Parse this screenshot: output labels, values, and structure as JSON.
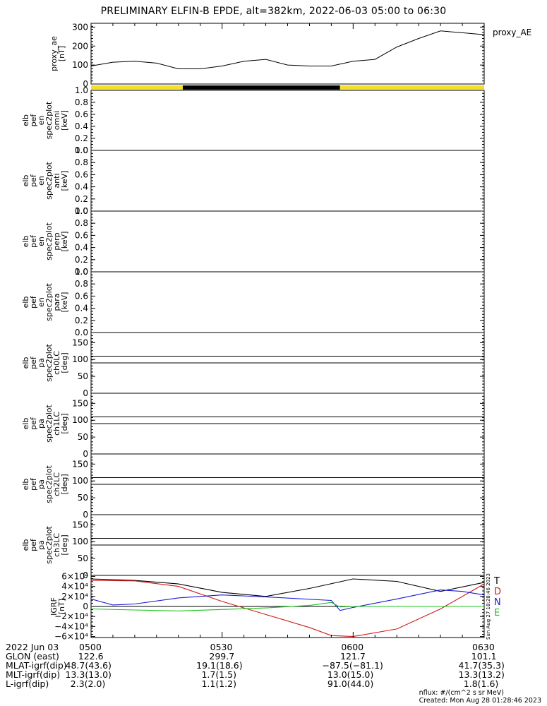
{
  "title": "PRELIMINARY ELFIN-B EPDE, alt=382km, 2022-06-03 05:00 to 06:30",
  "panels": [
    {
      "kind": "ae",
      "ylabel_lines": [
        "proxy_ae",
        "[nT]"
      ],
      "ticks": [
        0,
        100,
        200,
        300
      ],
      "ylim": [
        0,
        320
      ],
      "legend": "proxy_AE"
    },
    {
      "kind": "energy",
      "ylabel_lines": [
        "elb",
        "pef",
        "en",
        "spec2plot",
        "omni",
        "[keV]"
      ],
      "ticks": [
        "0.0",
        "0.2",
        "0.4",
        "0.6",
        "0.8",
        "1.0"
      ],
      "ylim": [
        0,
        1
      ]
    },
    {
      "kind": "energy",
      "ylabel_lines": [
        "elb",
        "pef",
        "en",
        "spec2plot",
        "anti",
        "[keV]"
      ],
      "ticks": [
        "0.0",
        "0.2",
        "0.4",
        "0.6",
        "0.8",
        "1.0"
      ],
      "ylim": [
        0,
        1
      ]
    },
    {
      "kind": "energy",
      "ylabel_lines": [
        "elb",
        "pef",
        "en",
        "spec2plot",
        "perp",
        "[keV]"
      ],
      "ticks": [
        "0.0",
        "0.2",
        "0.4",
        "0.6",
        "0.8",
        "1.0"
      ],
      "ylim": [
        0,
        1
      ]
    },
    {
      "kind": "energy",
      "ylabel_lines": [
        "elb",
        "pef",
        "en",
        "spec2plot",
        "para",
        "[keV]"
      ],
      "ticks": [
        "0.0",
        "0.2",
        "0.4",
        "0.6",
        "0.8",
        "1.0"
      ],
      "ylim": [
        0,
        1
      ]
    },
    {
      "kind": "pa",
      "ylabel_lines": [
        "elb",
        "pef",
        "pa",
        "spec2plot",
        "ch0LC",
        "[deg]"
      ],
      "ticks": [
        0,
        50,
        100,
        150
      ],
      "ylim": [
        0,
        180
      ],
      "hlines": [
        110,
        90
      ]
    },
    {
      "kind": "pa",
      "ylabel_lines": [
        "elb",
        "pef",
        "pa",
        "spec2plot",
        "ch1LC",
        "[deg]"
      ],
      "ticks": [
        0,
        50,
        100,
        150
      ],
      "ylim": [
        0,
        180
      ],
      "hlines": [
        110,
        90
      ]
    },
    {
      "kind": "pa",
      "ylabel_lines": [
        "elb",
        "pef",
        "pa",
        "spec2plot",
        "ch2LC",
        "[deg]"
      ],
      "ticks": [
        0,
        50,
        100,
        150
      ],
      "ylim": [
        0,
        180
      ],
      "hlines": [
        110,
        90
      ]
    },
    {
      "kind": "pa",
      "ylabel_lines": [
        "elb",
        "pef",
        "pa",
        "spec2plot",
        "ch3LC",
        "[deg]"
      ],
      "ticks": [
        0,
        50,
        100,
        150
      ],
      "ylim": [
        0,
        180
      ],
      "hlines": [
        110,
        90
      ]
    },
    {
      "kind": "igrf",
      "ylabel_lines": [
        "IGRF",
        "[nT]"
      ],
      "ticks": [
        -6,
        -4,
        -2,
        0,
        2,
        4,
        6
      ],
      "ylim": [
        -6.2,
        6.2
      ]
    }
  ],
  "chart_data": {
    "type": "line",
    "x_unit": "UT minutes after 05:00",
    "xlim": [
      0,
      90
    ],
    "ae": {
      "name": "proxy_AE",
      "x": [
        0,
        5,
        10,
        15,
        20,
        25,
        30,
        35,
        40,
        45,
        50,
        55,
        60,
        65,
        70,
        75,
        80,
        85,
        90
      ],
      "y": [
        95,
        115,
        120,
        110,
        80,
        80,
        95,
        120,
        130,
        100,
        95,
        95,
        120,
        130,
        195,
        240,
        280,
        270,
        260
      ]
    },
    "coverage_bar": [
      {
        "from": 0,
        "to": 21,
        "color": "#f2e02a"
      },
      {
        "from": 21,
        "to": 57,
        "color": "#000000"
      },
      {
        "from": 57,
        "to": 90,
        "color": "#f2e02a"
      }
    ],
    "igrf": {
      "scale_label": "×10⁴",
      "series": [
        {
          "name": "T",
          "color": "#000000",
          "x": [
            0,
            10,
            20,
            30,
            40,
            50,
            60,
            70,
            80,
            90
          ],
          "y": [
            5.5,
            5.2,
            4.5,
            2.8,
            2.0,
            3.6,
            5.5,
            5.0,
            3.0,
            4.8
          ]
        },
        {
          "name": "D",
          "color": "#d11a1a",
          "x": [
            0,
            10,
            20,
            30,
            40,
            50,
            55,
            60,
            70,
            80,
            90
          ],
          "y": [
            5.2,
            5.1,
            4.0,
            1.0,
            -1.6,
            -4.2,
            -5.8,
            -6.0,
            -4.5,
            -0.5,
            4.5
          ]
        },
        {
          "name": "N",
          "color": "#1a1ad6",
          "x": [
            0,
            5,
            10,
            20,
            30,
            40,
            55,
            57,
            60,
            70,
            80,
            85,
            90
          ],
          "y": [
            1.5,
            0.3,
            0.5,
            1.7,
            2.3,
            1.9,
            1.2,
            -0.8,
            -0.2,
            1.5,
            3.3,
            3.0,
            2.3
          ]
        },
        {
          "name": "E",
          "color": "#1dc21d",
          "x": [
            0,
            10,
            20,
            30,
            40,
            50,
            55,
            57,
            60,
            70,
            90
          ],
          "y": [
            -0.5,
            -0.7,
            -0.9,
            -0.6,
            -0.3,
            0.2,
            0.8,
            -0.1,
            0.0,
            0.0,
            0.0
          ]
        }
      ]
    }
  },
  "footer": {
    "row_labels": [
      "2022 Jun 03",
      "GLON (east)",
      "MLAT-igrf(dip)",
      "MLT-igrf(dip)",
      "L-igrf(dip)"
    ],
    "times": [
      "0500",
      "0530",
      "0600",
      "0630"
    ],
    "columns": [
      [
        "122.6",
        "48.7(43.6)",
        "13.3(13.0)",
        "2.3(2.0)"
      ],
      [
        "299.7",
        "19.1(18.6)",
        "1.7(1.5)",
        "1.1(1.2)"
      ],
      [
        "121.7",
        "−87.5(−81.1)",
        "13.0(15.0)",
        "91.0(44.0)"
      ],
      [
        "101.1",
        "41.7(35.3)",
        "13.3(13.2)",
        "1.8(1.6)"
      ]
    ]
  },
  "credits": [
    "nflux: #/(cm^2 s sr MeV)",
    "Created: Mon Aug 28 01:28:46 2023"
  ],
  "side_stamp": "Sun Aug 27 18:28:46 2023"
}
